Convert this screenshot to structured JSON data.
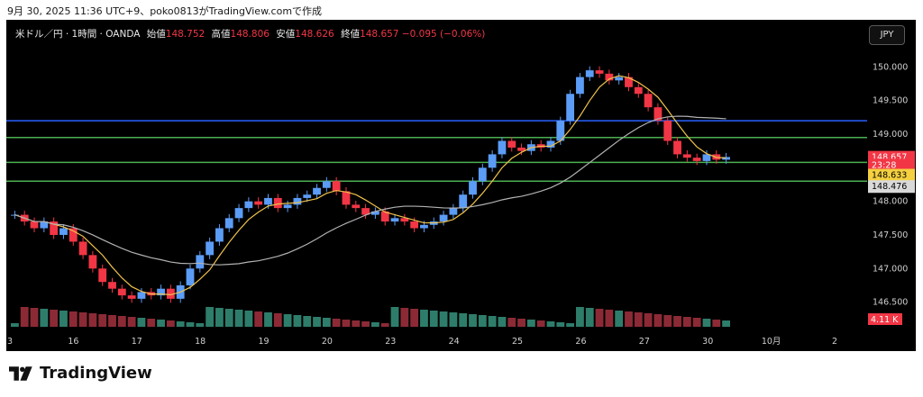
{
  "caption": "9月 30, 2025 11:36 UTC+9、poko0813がTradingView.comで作成",
  "header": {
    "symbol": "米ドル／円 · 1時間 · OANDA",
    "open_label": "始値",
    "open": "148.752",
    "high_label": "高値",
    "high": "148.806",
    "low_label": "安値",
    "low": "148.626",
    "close_label": "終値",
    "close": "148.657",
    "change": "−0.095 (−0.06%)"
  },
  "currency_button": "JPY",
  "brand": "TradingView",
  "colors": {
    "background": "#000000",
    "up_candle": "#5b9cf6",
    "down_candle": "#f23645",
    "channel_line": "#4caf50",
    "horizontal_blue": "#2962ff",
    "ma_short": "#f0c24b",
    "ma_long": "#b2b2b2",
    "vol_up": "#2e7d6b",
    "vol_down": "#8b2a35"
  },
  "chart_data": {
    "type": "candlestick",
    "symbol": "USDJPY",
    "timeframe": "1時間",
    "y_ticks": [
      {
        "label": "150.000",
        "value": 150.0
      },
      {
        "label": "149.500",
        "value": 149.5
      },
      {
        "label": "149.000",
        "value": 149.0
      },
      {
        "label": "148.000",
        "value": 148.0
      },
      {
        "label": "147.500",
        "value": 147.5
      },
      {
        "label": "147.000",
        "value": 147.0
      },
      {
        "label": "146.500",
        "value": 146.5
      }
    ],
    "ylim": [
      146.2,
      150.3
    ],
    "x_ticks": [
      "3",
      "16",
      "17",
      "18",
      "19",
      "20",
      "23",
      "24",
      "25",
      "26",
      "27",
      "30",
      "10月",
      "2"
    ],
    "price_badges": [
      {
        "label": "148.657",
        "value": 148.657,
        "bg": "#f23645",
        "fg": "#ffffff"
      },
      {
        "label": "23:28",
        "value": 148.54,
        "bg": "#f23645",
        "fg": "#ffffff"
      },
      {
        "label": "148.633",
        "value": 148.39,
        "bg": "#f5d040",
        "fg": "#000000"
      },
      {
        "label": "148.476",
        "value": 148.22,
        "bg": "#d9d9d9",
        "fg": "#000000"
      }
    ],
    "volume_badge": "4.11 K",
    "close_path": [
      147.8,
      147.7,
      147.6,
      147.7,
      147.5,
      147.6,
      147.4,
      147.2,
      147.0,
      146.8,
      146.7,
      146.6,
      146.55,
      146.65,
      146.6,
      146.7,
      146.55,
      146.75,
      147.0,
      147.2,
      147.4,
      147.6,
      147.75,
      147.9,
      148.0,
      147.95,
      148.05,
      147.9,
      147.95,
      148.05,
      148.1,
      148.2,
      148.3,
      148.15,
      147.95,
      147.9,
      147.8,
      147.85,
      147.7,
      147.75,
      147.7,
      147.6,
      147.65,
      147.7,
      147.8,
      147.9,
      148.1,
      148.3,
      148.5,
      148.7,
      148.9,
      148.8,
      148.75,
      148.85,
      148.8,
      148.9,
      149.2,
      149.6,
      149.85,
      149.95,
      149.9,
      149.8,
      149.85,
      149.7,
      149.6,
      149.4,
      149.2,
      148.9,
      148.7,
      148.65,
      148.6,
      148.7,
      148.62,
      148.66
    ],
    "drawings": {
      "horizontals": [
        {
          "value": 149.2,
          "color": "#2962ff"
        },
        {
          "value": 148.95,
          "color": "#4caf50"
        },
        {
          "value": 148.58,
          "color": "#4caf50"
        },
        {
          "value": 148.3,
          "color": "#4caf50"
        }
      ]
    }
  }
}
